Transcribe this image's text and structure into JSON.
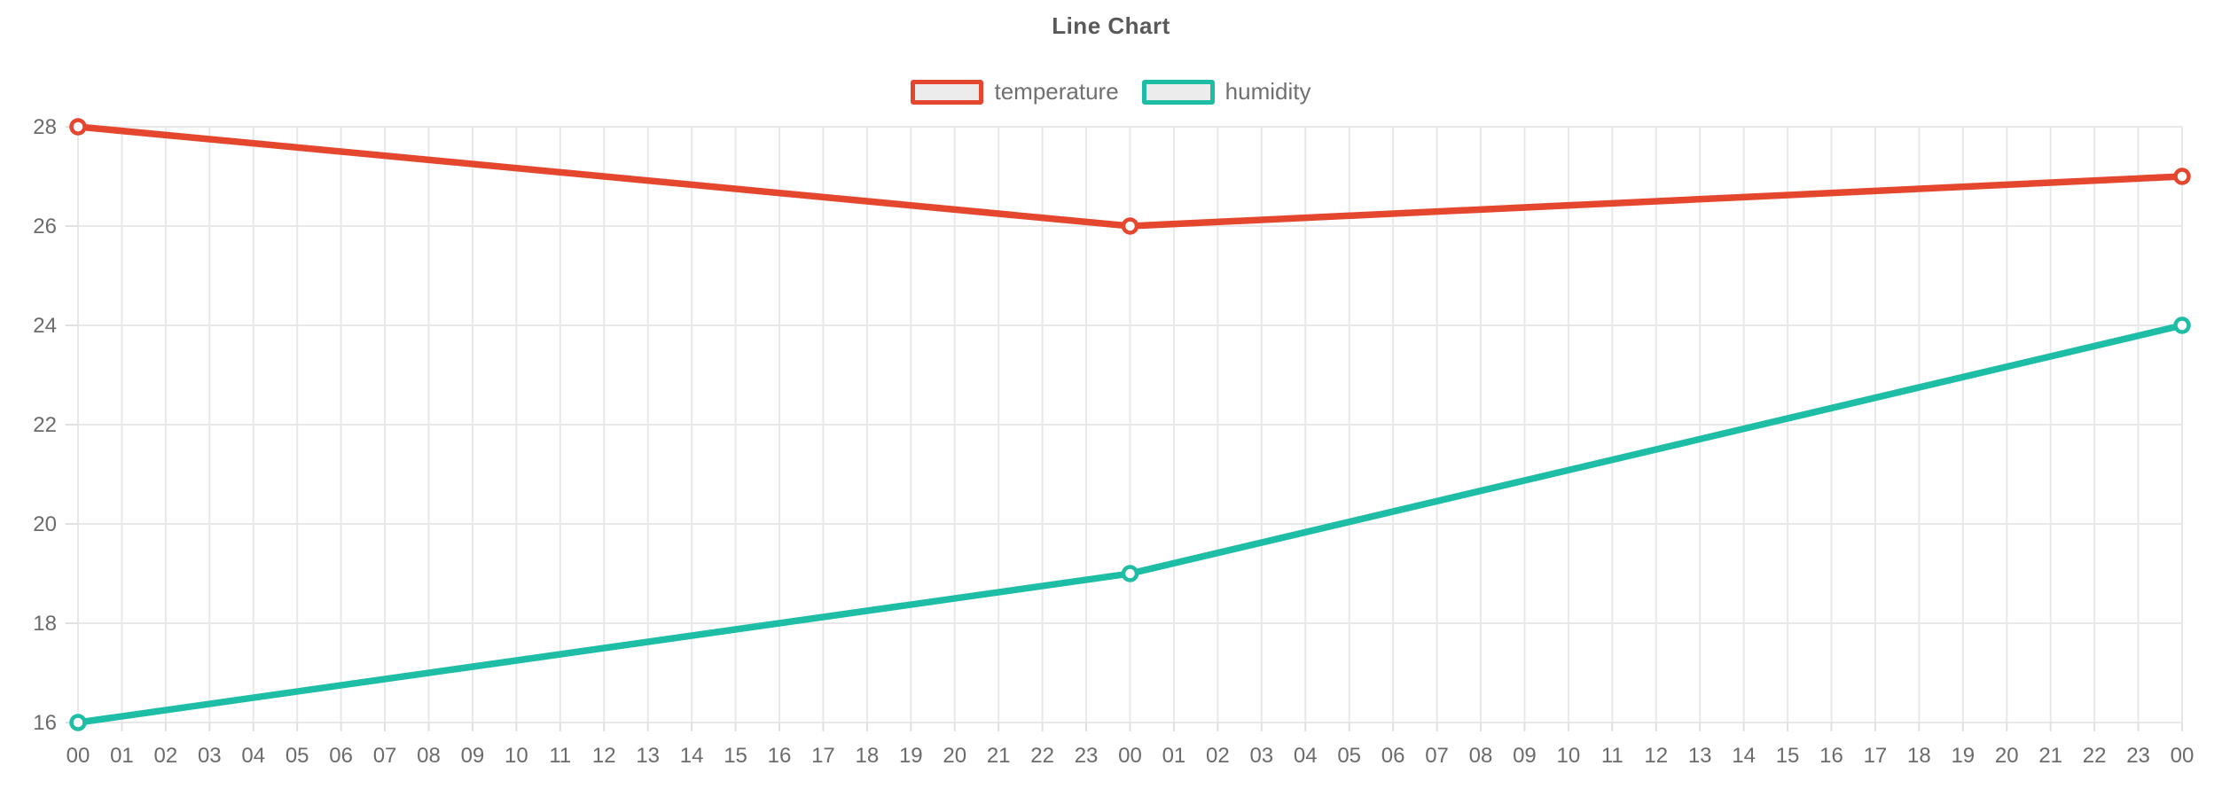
{
  "chart_data": {
    "type": "line",
    "title": "Line Chart",
    "x": [
      "00",
      "01",
      "02",
      "03",
      "04",
      "05",
      "06",
      "07",
      "08",
      "09",
      "10",
      "11",
      "12",
      "13",
      "14",
      "15",
      "16",
      "17",
      "18",
      "19",
      "20",
      "21",
      "22",
      "23",
      "00",
      "01",
      "02",
      "03",
      "04",
      "05",
      "06",
      "07",
      "08",
      "09",
      "10",
      "11",
      "12",
      "13",
      "14",
      "15",
      "16",
      "17",
      "18",
      "19",
      "20",
      "21",
      "22",
      "23",
      "00"
    ],
    "series": [
      {
        "name": "temperature",
        "color": "#e5462e",
        "points": [
          {
            "x_index": 0,
            "x_label": "00",
            "value": 28
          },
          {
            "x_index": 24,
            "x_label": "00",
            "value": 26
          },
          {
            "x_index": 48,
            "x_label": "00",
            "value": 27
          }
        ]
      },
      {
        "name": "humidity",
        "color": "#1ebda6",
        "points": [
          {
            "x_index": 0,
            "x_label": "00",
            "value": 16
          },
          {
            "x_index": 24,
            "x_label": "00",
            "value": 19
          },
          {
            "x_index": 48,
            "x_label": "00",
            "value": 24
          }
        ]
      }
    ],
    "yticks": [
      16,
      18,
      20,
      22,
      24,
      26,
      28
    ],
    "ylim": [
      16,
      28
    ],
    "grid": true,
    "legend_position": "top-center",
    "marker": "open-circle",
    "colors": {
      "grid": "#e8e8e8",
      "tick": "#e0e0e0",
      "axis_label": "#6b6b6b",
      "title": "#595959",
      "legend_text": "#707070",
      "legend_swatch_fill": "#ececec",
      "marker_fill": "#ffffff",
      "background": "#ffffff"
    }
  }
}
